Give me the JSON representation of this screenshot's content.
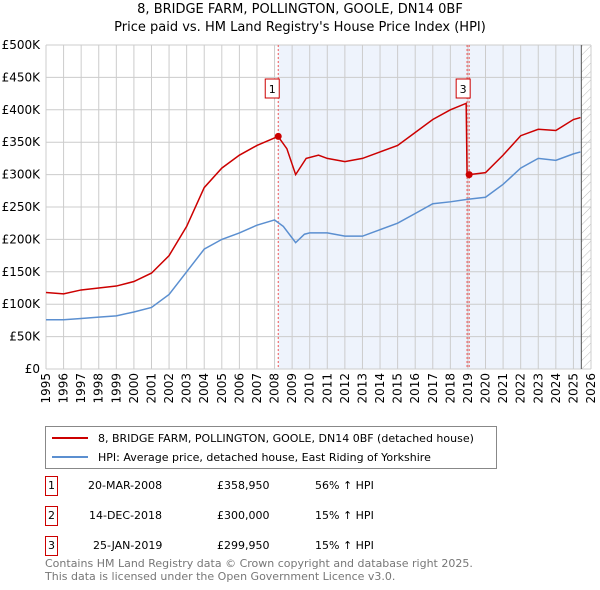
{
  "chart_data": {
    "type": "line",
    "title": "8, BRIDGE FARM, POLLINGTON, GOOLE, DN14 0BF",
    "subtitle": "Price paid vs. HM Land Registry's House Price Index (HPI)",
    "xlim": [
      1995,
      2026
    ],
    "ylim": [
      0,
      500000
    ],
    "x_ticks": [
      "1995",
      "1996",
      "1997",
      "1998",
      "1999",
      "2000",
      "2001",
      "2002",
      "2003",
      "2004",
      "2005",
      "2006",
      "2007",
      "2008",
      "2009",
      "2010",
      "2011",
      "2012",
      "2013",
      "2014",
      "2015",
      "2016",
      "2017",
      "2018",
      "2019",
      "2020",
      "2021",
      "2022",
      "2023",
      "2024",
      "2025",
      "2026"
    ],
    "y_ticks": [
      {
        "v": 0,
        "l": "£0"
      },
      {
        "v": 50000,
        "l": "£50K"
      },
      {
        "v": 100000,
        "l": "£100K"
      },
      {
        "v": 150000,
        "l": "£150K"
      },
      {
        "v": 200000,
        "l": "£200K"
      },
      {
        "v": 250000,
        "l": "£250K"
      },
      {
        "v": 300000,
        "l": "£300K"
      },
      {
        "v": 350000,
        "l": "£350K"
      },
      {
        "v": 400000,
        "l": "£400K"
      },
      {
        "v": 450000,
        "l": "£450K"
      },
      {
        "v": 500000,
        "l": "£500K"
      }
    ],
    "grid": true,
    "series": [
      {
        "name": "8, BRIDGE FARM, POLLINGTON, GOOLE, DN14 0BF (detached house)",
        "color": "#cc0000",
        "x": [
          1995,
          1996,
          1997,
          1998,
          1999,
          2000,
          2001,
          2002,
          2003,
          2004,
          2005,
          2006,
          2007,
          2008.2,
          2008.7,
          2009.2,
          2009.8,
          2010.5,
          2011,
          2012,
          2013,
          2014,
          2015,
          2016,
          2017,
          2018,
          2018.9,
          2018.95,
          2019.07,
          2020,
          2021,
          2022,
          2023,
          2024,
          2025,
          2025.4
        ],
        "y": [
          118000,
          116000,
          122000,
          125000,
          128000,
          135000,
          148000,
          175000,
          220000,
          280000,
          310000,
          330000,
          345000,
          358950,
          340000,
          300000,
          325000,
          330000,
          325000,
          320000,
          325000,
          335000,
          345000,
          365000,
          385000,
          400000,
          410000,
          300000,
          299950,
          303000,
          330000,
          360000,
          370000,
          368000,
          385000,
          388000
        ]
      },
      {
        "name": "HPI: Average price, detached house, East Riding of Yorkshire",
        "color": "#5b8fd0",
        "x": [
          1995,
          1996,
          1997,
          1998,
          1999,
          2000,
          2001,
          2002,
          2003,
          2004,
          2005,
          2006,
          2007,
          2008,
          2008.5,
          2009.2,
          2009.7,
          2010,
          2011,
          2012,
          2013,
          2014,
          2015,
          2016,
          2017,
          2018,
          2019,
          2020,
          2021,
          2022,
          2023,
          2024,
          2025,
          2025.4
        ],
        "y": [
          76000,
          76000,
          78000,
          80000,
          82000,
          88000,
          95000,
          115000,
          150000,
          185000,
          200000,
          210000,
          222000,
          230000,
          220000,
          195000,
          208000,
          210000,
          210000,
          205000,
          205000,
          215000,
          225000,
          240000,
          255000,
          258000,
          262000,
          265000,
          285000,
          310000,
          325000,
          322000,
          332000,
          335000
        ]
      }
    ],
    "sales": [
      {
        "n": "1",
        "date": "20-MAR-2008",
        "price": "£358,950",
        "hpi": "56% ↑ HPI",
        "x": 2008.21,
        "y": 358950
      },
      {
        "n": "2",
        "date": "14-DEC-2018",
        "price": "£300,000",
        "hpi": "15% ↑ HPI",
        "x": 2018.95,
        "y": 300000
      },
      {
        "n": "3",
        "date": "25-JAN-2019",
        "price": "£299,950",
        "hpi": "15% ↑ HPI",
        "x": 2019.07,
        "y": 299950
      }
    ],
    "data_end": 2025.45
  },
  "footer": [
    "Contains HM Land Registry data © Crown copyright and database right 2025.",
    "This data is licensed under the Open Government Licence v3.0."
  ]
}
